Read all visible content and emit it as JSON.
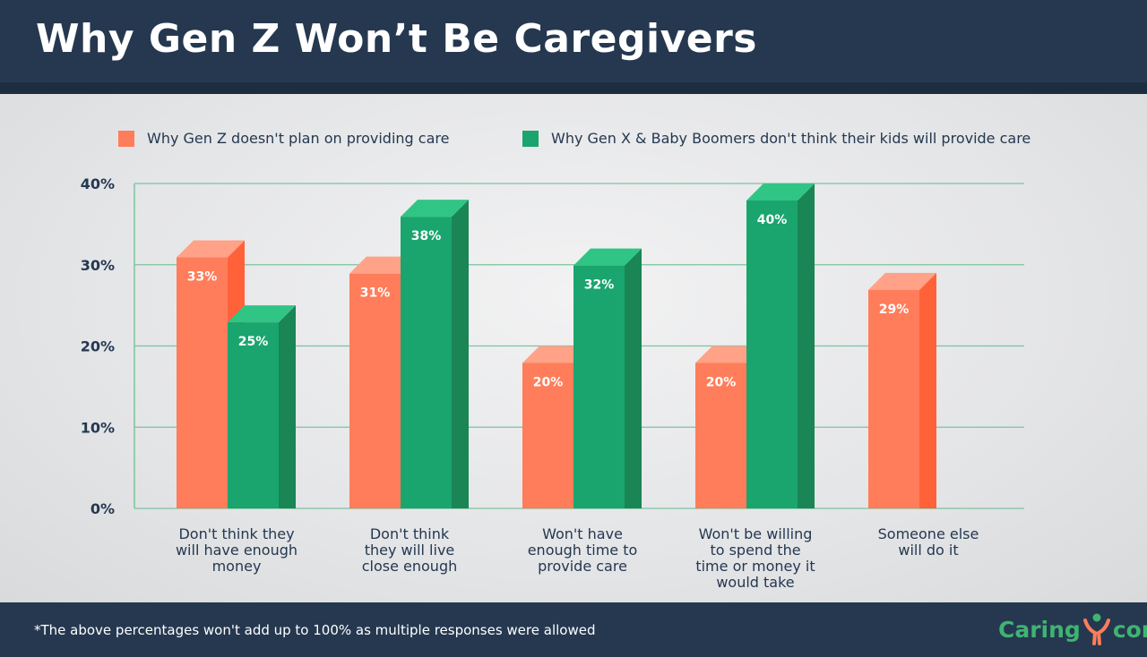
{
  "header": {
    "title": "Why Gen Z Won’t Be Caregivers"
  },
  "footer": {
    "footnote": "*The above percentages won't add up to 100% as multiple responses were allowed",
    "logo_text_left": "Caring",
    "logo_text_right": "com"
  },
  "colors": {
    "gen_z": "#ff7d5a",
    "gen_x_boomers": "#1aa56e",
    "background_dark": "#253850",
    "grid": "#7cc39f"
  },
  "chart_data": {
    "type": "bar",
    "style": "3d grouped",
    "categories": [
      "Don't think they will have enough money",
      "Don't think they will live close enough",
      "Won't have enough time to provide care",
      "Won't be willing to spend the time or money it would take",
      "Someone else will do it"
    ],
    "category_lines": [
      [
        "Don't think they",
        "will have enough",
        "money"
      ],
      [
        "Don't think",
        "they will live",
        "close enough"
      ],
      [
        "Won't have",
        "enough time to",
        "provide care"
      ],
      [
        "Won't be willing",
        "to spend the",
        "time or money it",
        "would take"
      ],
      [
        "Someone else",
        "will do it"
      ]
    ],
    "series": [
      {
        "name": "Why Gen Z doesn't plan on providing care",
        "values": [
          33,
          31,
          20,
          20,
          29
        ],
        "labels": [
          "33%",
          "31%",
          "20%",
          "20%",
          "29%"
        ]
      },
      {
        "name": "Why Gen X & Baby Boomers don't think their kids will provide care",
        "values": [
          25,
          38,
          32,
          40,
          null
        ],
        "labels": [
          "25%",
          "38%",
          "32%",
          "40%",
          ""
        ]
      }
    ],
    "yticks": [
      "0%",
      "10%",
      "20%",
      "30%",
      "40%"
    ],
    "ylim": [
      0,
      40
    ],
    "grid": true,
    "legend": "top"
  }
}
